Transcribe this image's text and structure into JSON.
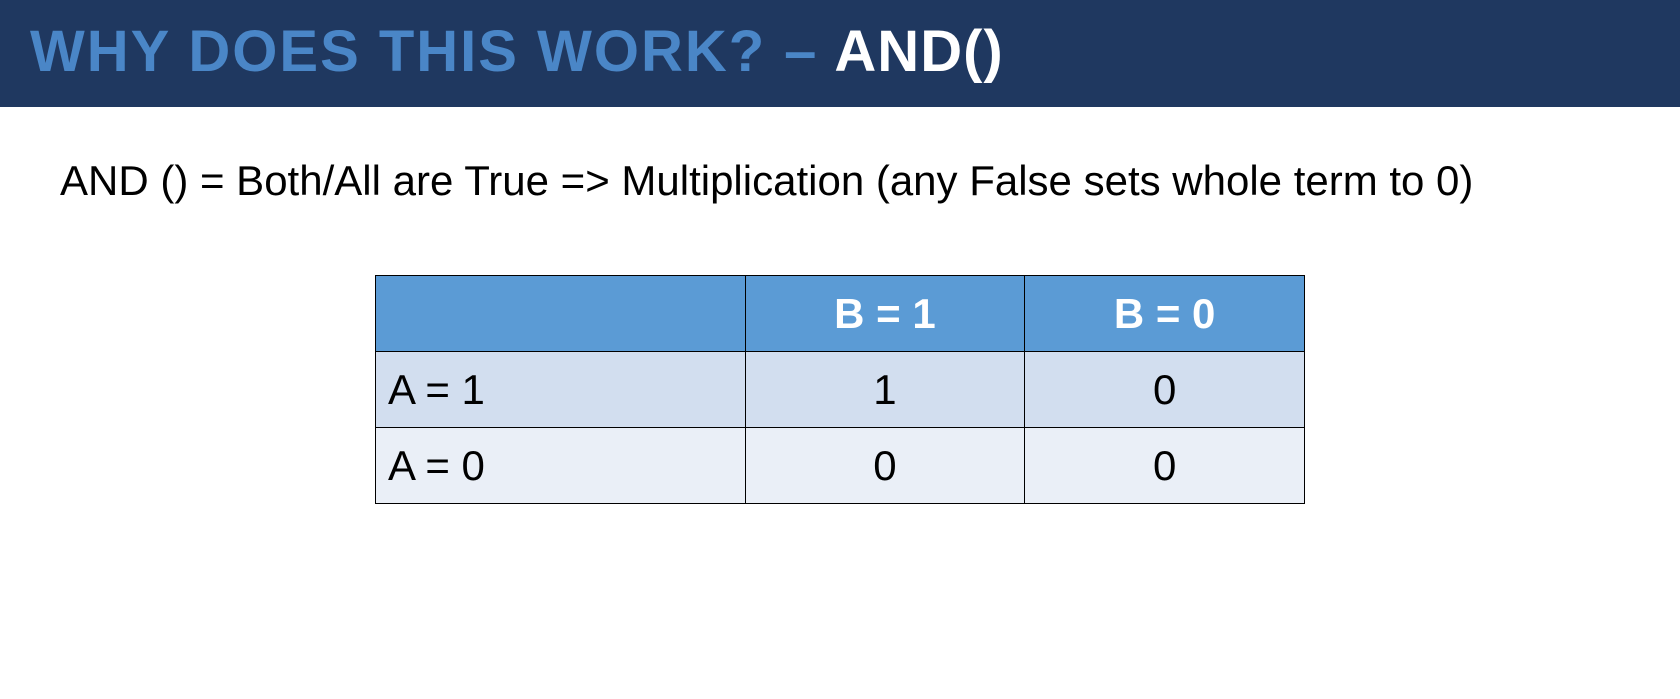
{
  "header": {
    "bg_color": "#1f3860",
    "title_main": "WHY DOES THIS WORK?",
    "title_main_color": "#4a86c7",
    "dash": "–",
    "dash_color": "#4a86c7",
    "title_func": "AND()",
    "title_func_color": "#ffffff"
  },
  "description": {
    "text": "AND () = Both/All are True => Multiplication (any False sets whole term to 0)"
  },
  "table": {
    "type": "truth-table",
    "header_bg": "#5b9bd5",
    "header_text_color": "#ffffff",
    "row_bg_odd": "#d2deef",
    "row_bg_even": "#eaeff7",
    "border_color": "#000000",
    "col_headers": [
      "B = 1",
      "B = 0"
    ],
    "rows": [
      {
        "label": "A = 1",
        "cells": [
          "1",
          "0"
        ]
      },
      {
        "label": "A = 0",
        "cells": [
          "0",
          "0"
        ]
      }
    ]
  }
}
